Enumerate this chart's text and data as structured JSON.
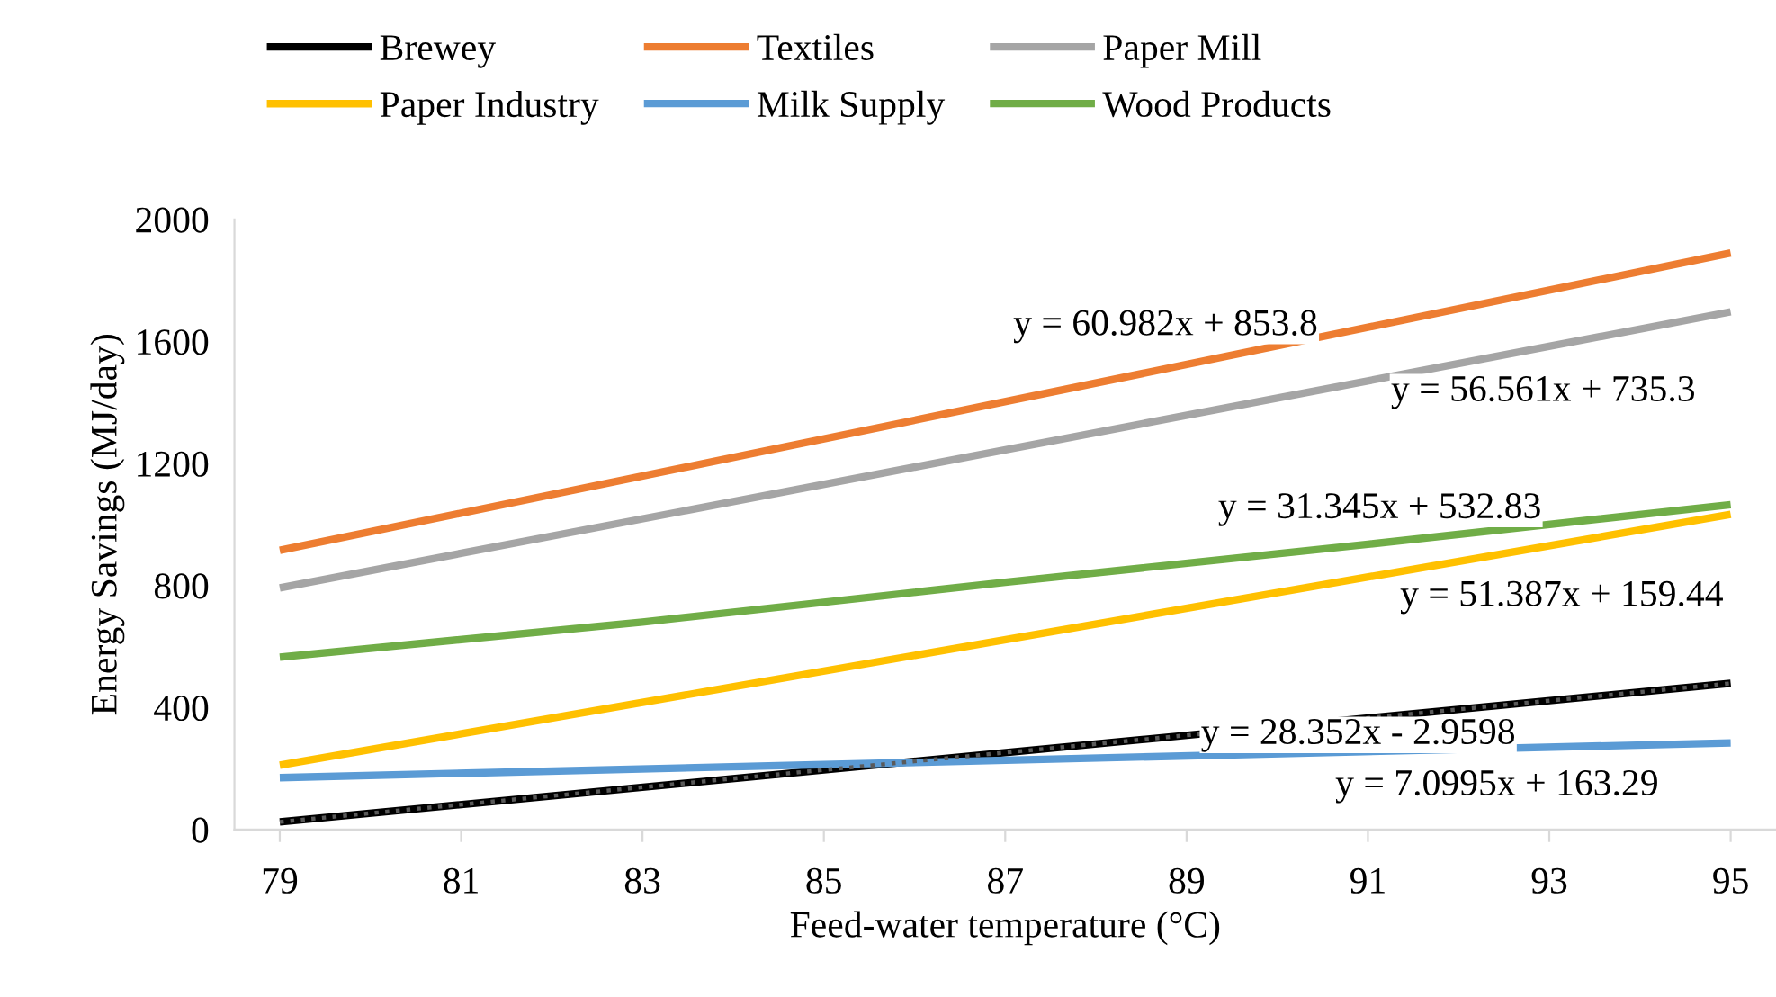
{
  "chart_data": {
    "type": "line",
    "xlabel": "Feed-water temperature (°C)",
    "ylabel": "Energy Savings (MJ/day)",
    "x": [
      79,
      95
    ],
    "xlim": [
      78.5,
      95.5
    ],
    "xticks": [
      79,
      81,
      83,
      85,
      87,
      89,
      91,
      93,
      95
    ],
    "ylim": [
      0,
      2000
    ],
    "yticks": [
      0,
      400,
      800,
      1200,
      1600,
      2000
    ],
    "grid": false,
    "legend": "top",
    "marker": "none",
    "line_style": "solid",
    "series": [
      {
        "name": "Brewey",
        "color": "#000000",
        "values": [
          25,
          479
        ]
      },
      {
        "name": "Textiles",
        "color": "#ed7d31",
        "values": [
          915,
          1890
        ]
      },
      {
        "name": "Paper Mill",
        "color": "#a5a5a5",
        "values": [
          792,
          1697
        ]
      },
      {
        "name": "Paper Industry",
        "color": "#ffc000",
        "values": [
          211,
          1033
        ]
      },
      {
        "name": "Milk Supply",
        "color": "#5b9bd5",
        "values": [
          170,
          284
        ]
      },
      {
        "name": "Wood Products",
        "color": "#70ad47",
        "x": [
          79,
          83,
          87,
          91,
          95
        ],
        "values": [
          565,
          680,
          810,
          935,
          1065
        ]
      },
      {
        "color": "#5a5a5a",
        "line_style": "dotted",
        "values": [
          25,
          479
        ]
      }
    ],
    "annotations": [
      "y = 60.982x + 853.8",
      "y = 56.561x + 735.3",
      "y = 31.345x + 532.83",
      "y = 51.387x + 159.44",
      "y = 28.352x - 2.9598",
      "y = 7.0995x + 163.29"
    ]
  }
}
